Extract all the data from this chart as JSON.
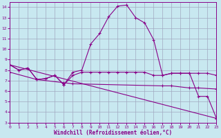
{
  "xlabel": "Windchill (Refroidissement éolien,°C)",
  "bg_color": "#c8e8f0",
  "grid_color": "#a0a8c0",
  "line_color": "#880088",
  "xlim": [
    0,
    23
  ],
  "ylim": [
    3,
    14.5
  ],
  "xticks": [
    0,
    1,
    2,
    3,
    4,
    5,
    6,
    7,
    8,
    9,
    10,
    11,
    12,
    13,
    14,
    15,
    16,
    17,
    18,
    19,
    20,
    21,
    22,
    23
  ],
  "yticks": [
    3,
    4,
    5,
    6,
    7,
    8,
    9,
    10,
    11,
    12,
    13,
    14
  ],
  "curve1_x": [
    0,
    1,
    2,
    3,
    4,
    5,
    6,
    7,
    8,
    9,
    10,
    11,
    12,
    13,
    14,
    15,
    16,
    17,
    18,
    19,
    20,
    21,
    22,
    23
  ],
  "curve1_y": [
    8.5,
    8.0,
    8.2,
    7.1,
    7.2,
    7.5,
    6.6,
    7.8,
    8.0,
    10.5,
    11.5,
    13.1,
    14.1,
    14.2,
    13.0,
    12.5,
    10.9,
    7.5,
    7.7,
    7.7,
    7.7,
    5.5,
    5.5,
    3.4
  ],
  "curve2_x": [
    0,
    1,
    2,
    3,
    4,
    5,
    6,
    7,
    8,
    9,
    10,
    11,
    12,
    13,
    14,
    15,
    16,
    17,
    18,
    19,
    20,
    21,
    22,
    23
  ],
  "curve2_y": [
    8.5,
    8.0,
    8.2,
    7.1,
    7.2,
    7.5,
    6.6,
    7.5,
    7.8,
    7.8,
    7.8,
    7.8,
    7.8,
    7.8,
    7.8,
    7.8,
    7.5,
    7.5,
    7.7,
    7.7,
    7.7,
    7.7,
    7.7,
    7.5
  ],
  "curve3_x": [
    0,
    23
  ],
  "curve3_y": [
    8.5,
    3.4
  ],
  "curve4_x": [
    0,
    3,
    6,
    7,
    17,
    18,
    20,
    21,
    23
  ],
  "curve4_y": [
    7.8,
    7.1,
    6.8,
    6.7,
    6.5,
    6.5,
    6.3,
    6.3,
    6.2
  ]
}
